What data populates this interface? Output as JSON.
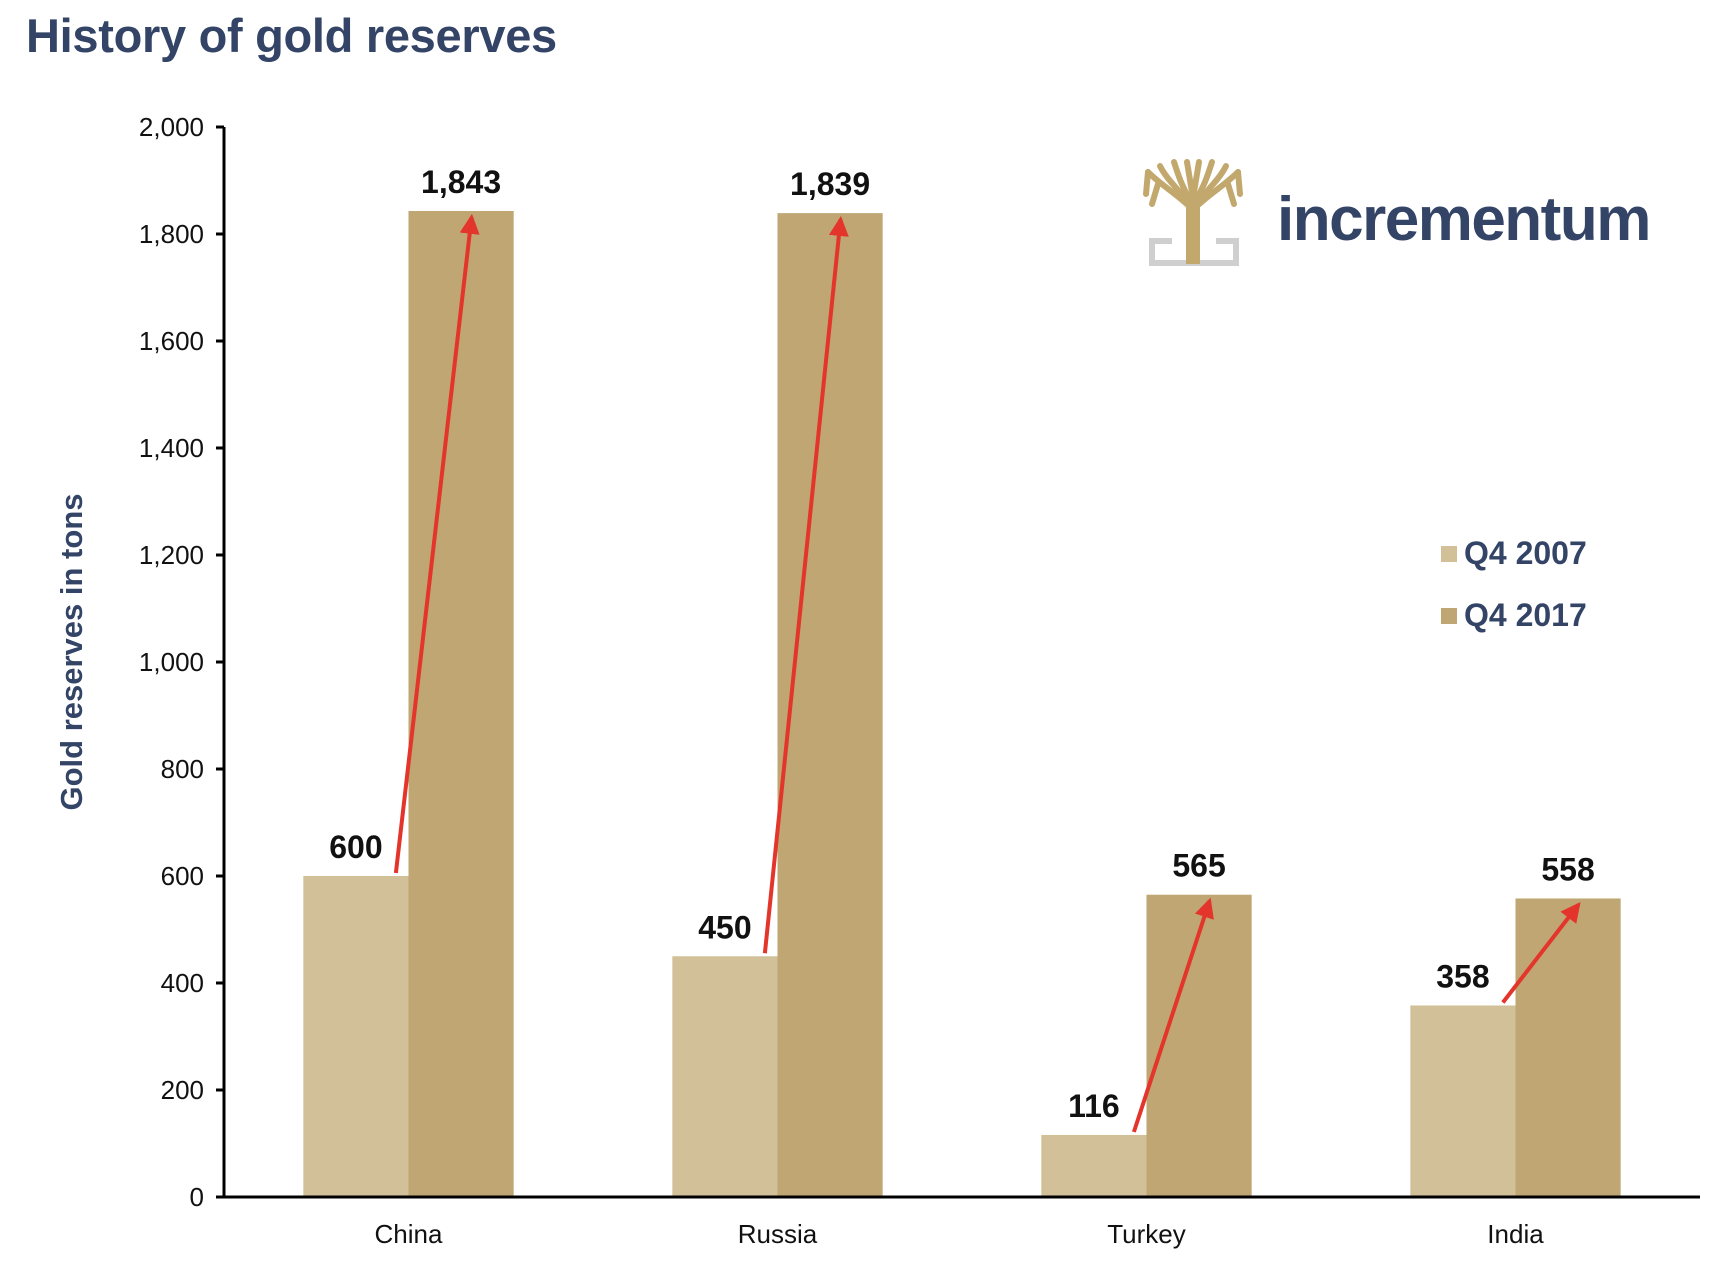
{
  "colors": {
    "series_2007": "#d1c098",
    "series_2017": "#c0a672",
    "arrow": "#e3352b",
    "title": "#334466",
    "axis": "#000000",
    "logo_tree": "#c2a86c",
    "logo_bracket": "#cfcfcf"
  },
  "logo": {
    "brand": "incrementum",
    "icon": "tree-icon"
  },
  "chart_data": {
    "type": "bar",
    "title": "History of gold reserves",
    "xlabel": "",
    "ylabel": "Gold reserves in tons",
    "ylim": [
      0,
      2000
    ],
    "yticks": [
      0,
      200,
      400,
      600,
      800,
      1000,
      1200,
      1400,
      1600,
      1800,
      2000
    ],
    "ytick_labels": [
      "0",
      "200",
      "400",
      "600",
      "800",
      "1,000",
      "1,200",
      "1,400",
      "1,600",
      "1,800",
      "2,000"
    ],
    "categories": [
      "China",
      "Russia",
      "Turkey",
      "India"
    ],
    "series": [
      {
        "name": "Q4 2007",
        "values": [
          600,
          450,
          116,
          358
        ],
        "labels": [
          "600",
          "450",
          "116",
          "358"
        ]
      },
      {
        "name": "Q4 2017",
        "values": [
          1843,
          1839,
          565,
          558
        ],
        "labels": [
          "1,843",
          "1,839",
          "565",
          "558"
        ]
      }
    ],
    "annotations": "red arrows from each Q4 2007 bar top to the corresponding Q4 2017 bar top",
    "legend_position": "right",
    "grid": false
  }
}
